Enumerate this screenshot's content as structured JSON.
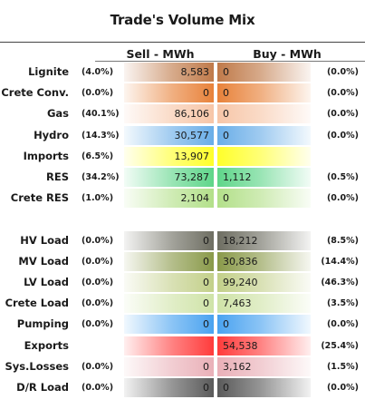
{
  "chart_data": {
    "type": "table",
    "title": "Trade's Volume Mix",
    "columns": {
      "sell": "Sell - MWh",
      "buy": "Buy - MWh"
    },
    "rows": [
      {
        "label": "Lignite",
        "sell_pct": "(4.0%)",
        "sell": "8,583",
        "buy": "0",
        "buy_pct": "(0.0%)",
        "color": "#c07a4a"
      },
      {
        "label": "Crete Conv.",
        "sell_pct": "(0.0%)",
        "sell": "0",
        "buy": "0",
        "buy_pct": "(0.0%)",
        "color": "#e8823a"
      },
      {
        "label": "Gas",
        "sell_pct": "(40.1%)",
        "sell": "86,106",
        "buy": "0",
        "buy_pct": "(0.0%)",
        "color": "#f7c6a8"
      },
      {
        "label": "Hydro",
        "sell_pct": "(14.3%)",
        "sell": "30,577",
        "buy": "0",
        "buy_pct": "(0.0%)",
        "color": "#6aaee8"
      },
      {
        "label": "Imports",
        "sell_pct": "(6.5%)",
        "sell": "13,907",
        "buy": "",
        "buy_pct": "",
        "color": "#ffff2a"
      },
      {
        "label": "RES",
        "sell_pct": "(34.2%)",
        "sell": "73,287",
        "buy": "1,112",
        "buy_pct": "(0.5%)",
        "color": "#5fd68a"
      },
      {
        "label": "Crete RES",
        "sell_pct": "(1.0%)",
        "sell": "2,104",
        "buy": "0",
        "buy_pct": "(0.0%)",
        "color": "#b3e08a"
      },
      {
        "label": "",
        "sell_pct": "",
        "sell": "",
        "buy": "",
        "buy_pct": "",
        "color": "#ffffff"
      },
      {
        "label": "HV Load",
        "sell_pct": "(0.0%)",
        "sell": "0",
        "buy": "18,212",
        "buy_pct": "(8.5%)",
        "color": "#6e6e62"
      },
      {
        "label": "MV Load",
        "sell_pct": "(0.0%)",
        "sell": "0",
        "buy": "30,836",
        "buy_pct": "(14.4%)",
        "color": "#8a9a4a"
      },
      {
        "label": "LV Load",
        "sell_pct": "(0.0%)",
        "sell": "0",
        "buy": "99,240",
        "buy_pct": "(46.3%)",
        "color": "#c3d08a"
      },
      {
        "label": "Crete Load",
        "sell_pct": "(0.0%)",
        "sell": "0",
        "buy": "7,463",
        "buy_pct": "(3.5%)",
        "color": "#cfe3a8"
      },
      {
        "label": "Pumping",
        "sell_pct": "(0.0%)",
        "sell": "0",
        "buy": "0",
        "buy_pct": "(0.0%)",
        "color": "#4aa3f0"
      },
      {
        "label": "Exports",
        "sell_pct": "",
        "sell": "",
        "buy": "54,538",
        "buy_pct": "(25.4%)",
        "color": "#ff3b3b"
      },
      {
        "label": "Sys.Losses",
        "sell_pct": "(0.0%)",
        "sell": "0",
        "buy": "3,162",
        "buy_pct": "(1.5%)",
        "color": "#eab0b8"
      },
      {
        "label": "D/R Load",
        "sell_pct": "(0.0%)",
        "sell": "0",
        "buy": "0",
        "buy_pct": "(0.0%)",
        "color": "#5a5a5a"
      }
    ]
  }
}
